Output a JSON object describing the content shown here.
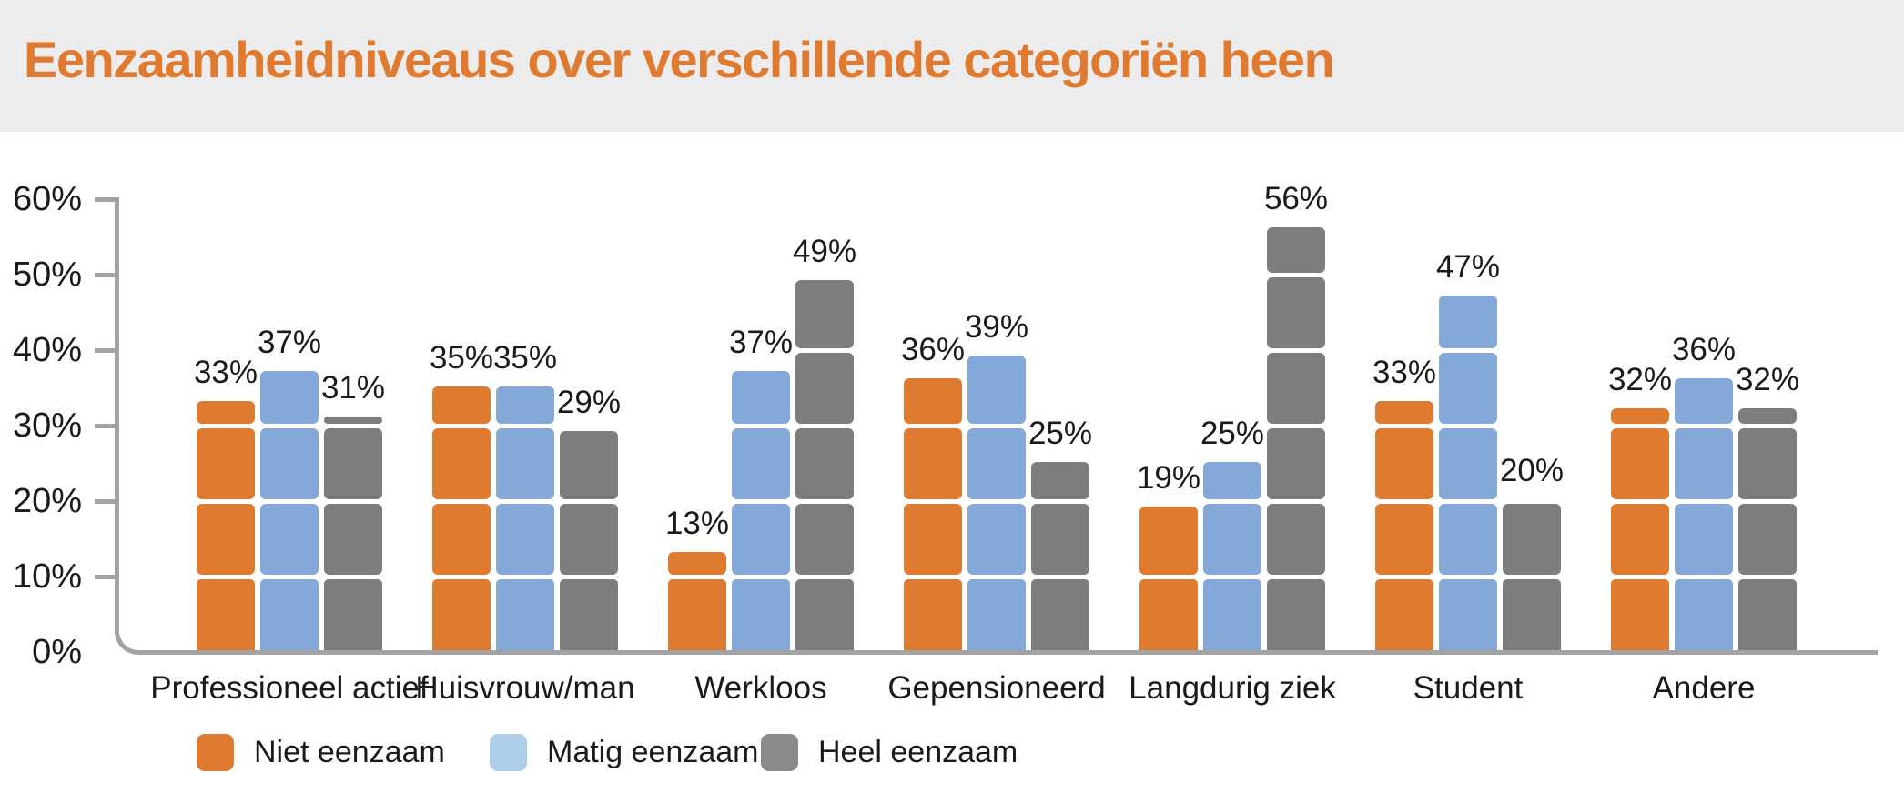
{
  "header": {
    "title": "Eenzaamheidniveaus over verschillende categoriën heen"
  },
  "chart_data": {
    "type": "bar",
    "title": "Eenzaamheidniveaus over verschillende categoriën heen",
    "categories": [
      "Professioneel actief",
      "Huisvrouw/man",
      "Werkloos",
      "Gepensioneerd",
      "Langdurig ziek",
      "Student",
      "Andere"
    ],
    "series": [
      {
        "name": "Niet eenzaam",
        "color": "#DF7A31",
        "values": [
          33,
          35,
          13,
          36,
          19,
          33,
          32
        ]
      },
      {
        "name": "Matig eenzaam",
        "color": "#84A9D8",
        "values": [
          37,
          35,
          37,
          39,
          25,
          47,
          36
        ]
      },
      {
        "name": "Heel eenzaam",
        "color": "#7D7D7D",
        "values": [
          31,
          29,
          49,
          25,
          56,
          20,
          32
        ]
      }
    ],
    "value_suffix": "%",
    "xlabel": "",
    "ylabel": "",
    "ylim": [
      0,
      60
    ],
    "y_tick_labels": [
      "0%",
      "10%",
      "20%",
      "30%",
      "40%",
      "50%",
      "60%"
    ],
    "grid": "white separator lines inside bars at every 10 percent",
    "data_labels": "percentage above each bar",
    "legend_position": "bottom-left"
  },
  "legend": {
    "items": [
      {
        "label": "Niet eenzaam",
        "swatch_color": "#DF7A31"
      },
      {
        "label": "Matig eenzaam",
        "swatch_color": "#AFCEEA"
      },
      {
        "label": "Heel eenzaam",
        "swatch_color": "#8A8A8A"
      }
    ]
  },
  "colors": {
    "background": "#FFFFFF",
    "header_bg": "#ECECEC",
    "title_text": "#DF7A30",
    "axis": "#A3A3A3",
    "label_text": "#1A1A1A"
  }
}
